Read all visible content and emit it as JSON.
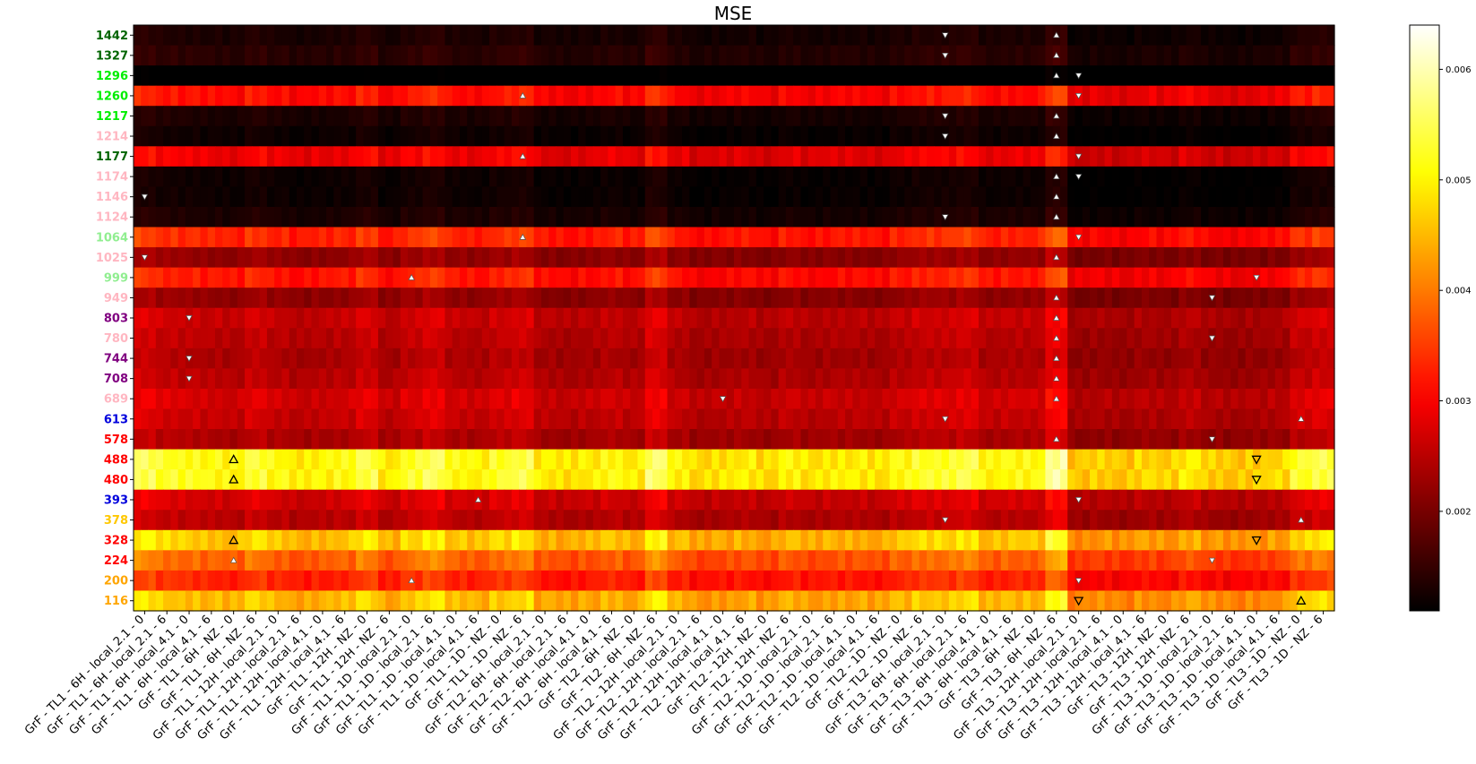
{
  "chart_data": {
    "type": "heatmap",
    "title": "MSE",
    "xlabel": "",
    "ylabel": "",
    "columns": [
      "GrF - TL1 - 6H - local_2.1 - 0",
      "GrF - TL1 - 6H - local_2.1 - 6",
      "GrF - TL1 - 6H - local_4.1 - 0",
      "GrF - TL1 - 6H - local_4.1 - 6",
      "GrF - TL1 - 6H - NZ - 0",
      "GrF - TL1 - 6H - NZ - 6",
      "GrF - TL1 - 12H - local_2.1 - 0",
      "GrF - TL1 - 12H - local_2.1 - 6",
      "GrF - TL1 - 12H - local_4.1 - 0",
      "GrF - TL1 - 12H - local_4.1 - 6",
      "GrF - TL1 - 12H - NZ - 0",
      "GrF - TL1 - 12H - NZ - 6",
      "GrF - TL1 - 1D - local_2.1 - 0",
      "GrF - TL1 - 1D - local_2.1 - 6",
      "GrF - TL1 - 1D - local_4.1 - 0",
      "GrF - TL1 - 1D - local_4.1 - 6",
      "GrF - TL1 - 1D - NZ - 0",
      "GrF - TL1 - 1D - NZ - 6",
      "GrF - TL2 - 6H - local_2.1 - 0",
      "GrF - TL2 - 6H - local_2.1 - 6",
      "GrF - TL2 - 6H - local_4.1 - 0",
      "GrF - TL2 - 6H - local_4.1 - 6",
      "GrF - TL2 - 6H - NZ - 0",
      "GrF - TL2 - 6H - NZ - 6",
      "GrF - TL2 - 12H - local_2.1 - 0",
      "GrF - TL2 - 12H - local_2.1 - 6",
      "GrF - TL2 - 12H - local_4.1 - 0",
      "GrF - TL2 - 12H - local_4.1 - 6",
      "GrF - TL2 - 12H - NZ - 0",
      "GrF - TL2 - 12H - NZ - 6",
      "GrF - TL2 - 1D - local_2.1 - 0",
      "GrF - TL2 - 1D - local_2.1 - 6",
      "GrF - TL2 - 1D - local_4.1 - 0",
      "GrF - TL2 - 1D - local_4.1 - 6",
      "GrF - TL2 - 1D - NZ - 0",
      "GrF - TL2 - 1D - NZ - 6",
      "GrF - TL3 - 6H - local_2.1 - 0",
      "GrF - TL3 - 6H - local_2.1 - 6",
      "GrF - TL3 - 6H - local_4.1 - 0",
      "GrF - TL3 - 6H - local_4.1 - 6",
      "GrF - TL3 - 6H - NZ - 0",
      "GrF - TL3 - 6H - NZ - 6",
      "GrF - TL3 - 12H - local_2.1 - 0",
      "GrF - TL3 - 12H - local_2.1 - 6",
      "GrF - TL3 - 12H - local_4.1 - 0",
      "GrF - TL3 - 12H - local_4.1 - 6",
      "GrF - TL3 - 12H - NZ - 0",
      "GrF - TL3 - 12H - NZ - 6",
      "GrF - TL3 - 1D - local_2.1 - 0",
      "GrF - TL3 - 1D - local_2.1 - 6",
      "GrF - TL3 - 1D - local_4.1 - 0",
      "GrF - TL3 - 1D - local_4.1 - 6",
      "GrF - TL3 - 1D - NZ - 0",
      "GrF - TL3 - 1D - NZ - 6"
    ],
    "subcolumns_per_column": 3,
    "rows": [
      {
        "label": "1442",
        "color": "#006400",
        "base": 0.0013
      },
      {
        "label": "1327",
        "color": "#006400",
        "base": 0.0014
      },
      {
        "label": "1296",
        "color": "#00ee00",
        "base": 0.001
      },
      {
        "label": "1260",
        "color": "#00ee00",
        "base": 0.0031
      },
      {
        "label": "1217",
        "color": "#00ee00",
        "base": 0.0013
      },
      {
        "label": "1214",
        "color": "#ffb6c1",
        "base": 0.0012
      },
      {
        "label": "1177",
        "color": "#006400",
        "base": 0.0029
      },
      {
        "label": "1174",
        "color": "#ffb6c1",
        "base": 0.0012
      },
      {
        "label": "1146",
        "color": "#ffb6c1",
        "base": 0.0012
      },
      {
        "label": "1124",
        "color": "#ffb6c1",
        "base": 0.0013
      },
      {
        "label": "1064",
        "color": "#90ee90",
        "base": 0.0033
      },
      {
        "label": "1025",
        "color": "#ffb6c1",
        "base": 0.0022
      },
      {
        "label": "999",
        "color": "#90ee90",
        "base": 0.0032
      },
      {
        "label": "949",
        "color": "#ffb6c1",
        "base": 0.0022
      },
      {
        "label": "803",
        "color": "#800080",
        "base": 0.0026
      },
      {
        "label": "780",
        "color": "#ffb6c1",
        "base": 0.0025
      },
      {
        "label": "744",
        "color": "#800080",
        "base": 0.0024
      },
      {
        "label": "708",
        "color": "#800080",
        "base": 0.0025
      },
      {
        "label": "689",
        "color": "#ffb6c1",
        "base": 0.0027
      },
      {
        "label": "613",
        "color": "#0000dd",
        "base": 0.0026
      },
      {
        "label": "578",
        "color": "#ff0000",
        "base": 0.0024
      },
      {
        "label": "488",
        "color": "#ff0000",
        "base": 0.0051
      },
      {
        "label": "480",
        "color": "#ff0000",
        "base": 0.0051
      },
      {
        "label": "393",
        "color": "#0000dd",
        "base": 0.0027
      },
      {
        "label": "378",
        "color": "#ffc800",
        "base": 0.0025
      },
      {
        "label": "328",
        "color": "#ff0000",
        "base": 0.0046
      },
      {
        "label": "224",
        "color": "#ff0000",
        "base": 0.0038
      },
      {
        "label": "200",
        "color": "#ffa500",
        "base": 0.0033
      },
      {
        "label": "116",
        "color": "#ffa500",
        "base": 0.0045
      }
    ],
    "column_bias": [
      0.00025,
      0.0001,
      5e-05,
      0.0,
      -5e-05,
      0.00015,
      0.0,
      -0.0001,
      -5e-05,
      0.0,
      0.0002,
      -0.0001,
      0.0001,
      0.00025,
      0.0,
      -5e-05,
      0.0001,
      0.0002,
      -0.0001,
      -0.00015,
      -0.0001,
      0.0,
      -0.0001,
      0.0003,
      -5e-05,
      -0.0002,
      -0.00015,
      -0.0001,
      -0.0002,
      -5e-05,
      -0.00015,
      -0.0001,
      -0.0001,
      -0.00015,
      0.0,
      0.0001,
      0.0001,
      0.0002,
      -5e-05,
      0.0,
      0.0,
      0.00045,
      -0.0003,
      -0.00025,
      -0.0003,
      -0.0002,
      -0.00025,
      -0.0001,
      -0.00025,
      -0.0003,
      -0.00025,
      -0.0002,
      0.0001,
      0.0002
    ],
    "colorbar": {
      "colormap": "hot",
      "min": 0.0011,
      "max": 0.0064,
      "ticks": [
        "0.002",
        "0.003",
        "0.004",
        "0.005",
        "0.006"
      ],
      "tick_values": [
        0.002,
        0.003,
        0.004,
        0.005,
        0.006
      ]
    },
    "markers": {
      "description_up": "triangle-up",
      "description_down": "triangle-down",
      "points": [
        {
          "row": 0,
          "col": 36,
          "dir": "down"
        },
        {
          "row": 0,
          "col": 41,
          "dir": "up"
        },
        {
          "row": 1,
          "col": 36,
          "dir": "down"
        },
        {
          "row": 1,
          "col": 41,
          "dir": "up"
        },
        {
          "row": 2,
          "col": 41,
          "dir": "up"
        },
        {
          "row": 2,
          "col": 42,
          "dir": "down"
        },
        {
          "row": 3,
          "col": 17,
          "dir": "up"
        },
        {
          "row": 3,
          "col": 42,
          "dir": "down"
        },
        {
          "row": 4,
          "col": 36,
          "dir": "down"
        },
        {
          "row": 4,
          "col": 41,
          "dir": "up"
        },
        {
          "row": 5,
          "col": 36,
          "dir": "down"
        },
        {
          "row": 5,
          "col": 41,
          "dir": "up"
        },
        {
          "row": 6,
          "col": 17,
          "dir": "up"
        },
        {
          "row": 6,
          "col": 42,
          "dir": "down"
        },
        {
          "row": 7,
          "col": 41,
          "dir": "up"
        },
        {
          "row": 7,
          "col": 42,
          "dir": "down"
        },
        {
          "row": 8,
          "col": 0,
          "dir": "down"
        },
        {
          "row": 8,
          "col": 41,
          "dir": "up"
        },
        {
          "row": 9,
          "col": 36,
          "dir": "down"
        },
        {
          "row": 9,
          "col": 41,
          "dir": "up"
        },
        {
          "row": 10,
          "col": 17,
          "dir": "up"
        },
        {
          "row": 10,
          "col": 42,
          "dir": "down"
        },
        {
          "row": 11,
          "col": 0,
          "dir": "down"
        },
        {
          "row": 11,
          "col": 41,
          "dir": "up"
        },
        {
          "row": 12,
          "col": 12,
          "dir": "up"
        },
        {
          "row": 12,
          "col": 50,
          "dir": "down"
        },
        {
          "row": 13,
          "col": 41,
          "dir": "up"
        },
        {
          "row": 13,
          "col": 48,
          "dir": "down"
        },
        {
          "row": 14,
          "col": 2,
          "dir": "down"
        },
        {
          "row": 14,
          "col": 41,
          "dir": "up"
        },
        {
          "row": 15,
          "col": 41,
          "dir": "up"
        },
        {
          "row": 15,
          "col": 48,
          "dir": "down"
        },
        {
          "row": 16,
          "col": 2,
          "dir": "down"
        },
        {
          "row": 16,
          "col": 41,
          "dir": "up"
        },
        {
          "row": 17,
          "col": 2,
          "dir": "down"
        },
        {
          "row": 17,
          "col": 41,
          "dir": "up"
        },
        {
          "row": 18,
          "col": 26,
          "dir": "down"
        },
        {
          "row": 18,
          "col": 41,
          "dir": "up"
        },
        {
          "row": 19,
          "col": 36,
          "dir": "down"
        },
        {
          "row": 19,
          "col": 52,
          "dir": "up"
        },
        {
          "row": 20,
          "col": 41,
          "dir": "up"
        },
        {
          "row": 20,
          "col": 48,
          "dir": "down"
        },
        {
          "row": 21,
          "col": 4,
          "dir": "up"
        },
        {
          "row": 21,
          "col": 50,
          "dir": "down"
        },
        {
          "row": 22,
          "col": 4,
          "dir": "up"
        },
        {
          "row": 22,
          "col": 50,
          "dir": "down"
        },
        {
          "row": 23,
          "col": 15,
          "dir": "up"
        },
        {
          "row": 23,
          "col": 42,
          "dir": "down"
        },
        {
          "row": 24,
          "col": 36,
          "dir": "down"
        },
        {
          "row": 24,
          "col": 52,
          "dir": "up"
        },
        {
          "row": 25,
          "col": 4,
          "dir": "up"
        },
        {
          "row": 25,
          "col": 50,
          "dir": "down"
        },
        {
          "row": 26,
          "col": 4,
          "dir": "up"
        },
        {
          "row": 26,
          "col": 48,
          "dir": "down"
        },
        {
          "row": 27,
          "col": 12,
          "dir": "up"
        },
        {
          "row": 27,
          "col": 42,
          "dir": "down"
        },
        {
          "row": 28,
          "col": 42,
          "dir": "down"
        },
        {
          "row": 28,
          "col": 52,
          "dir": "up"
        }
      ]
    }
  }
}
